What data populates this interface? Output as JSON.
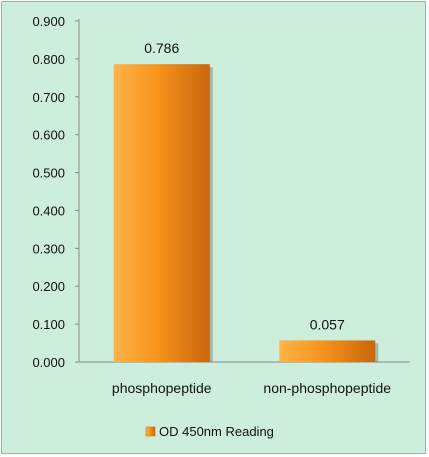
{
  "chart_data": {
    "type": "bar",
    "categories": [
      "phosphopeptide",
      "non-phosphopeptide"
    ],
    "series": [
      {
        "name": "OD 450nm Reading",
        "values": [
          0.786,
          0.057
        ]
      }
    ],
    "data_labels": [
      "0.786",
      "0.057"
    ],
    "ylim": [
      0,
      0.9
    ],
    "yticks": [
      "0.000",
      "0.100",
      "0.200",
      "0.300",
      "0.400",
      "0.500",
      "0.600",
      "0.700",
      "0.800",
      "0.900"
    ],
    "grid": false,
    "legend_position": "bottom",
    "colors": {
      "background": "#cdeedd",
      "bar_light": "#ffb347",
      "bar_mid": "#f7941d",
      "bar_dark": "#c8660a",
      "axis": "#8a8a8a"
    }
  }
}
